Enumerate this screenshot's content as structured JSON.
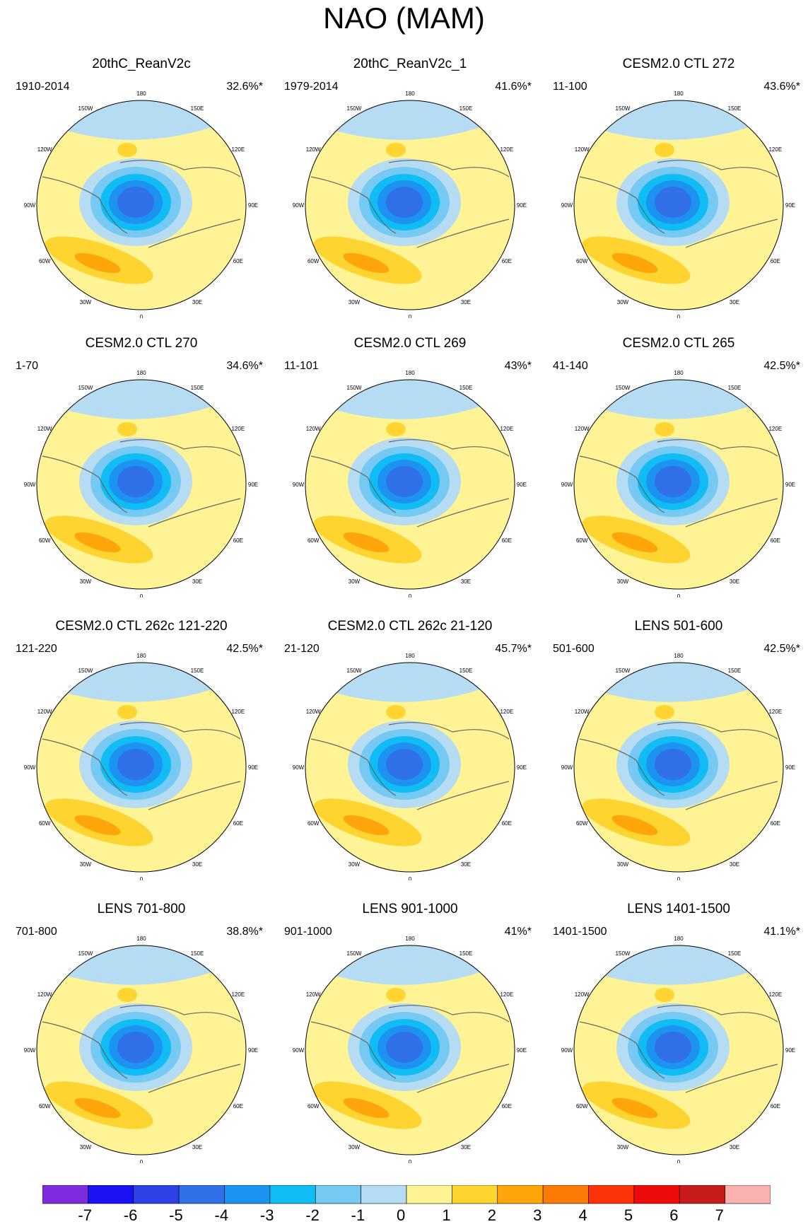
{
  "figure": {
    "title": "NAO (MAM)"
  },
  "chart_data": {
    "type": "heatmap",
    "description_kind": "12 polar-stereographic EOF maps",
    "colorbar": {
      "ticks": [
        "-7",
        "-6",
        "-5",
        "-4",
        "-3",
        "-2",
        "-1",
        "0",
        "1",
        "2",
        "3",
        "4",
        "5",
        "6",
        "7"
      ],
      "colors": [
        "#7f2be0",
        "#1a12f2",
        "#2c42e6",
        "#3070e8",
        "#1c93f0",
        "#10bcf4",
        "#75c9f2",
        "#b5dcf2",
        "#fff495",
        "#fed430",
        "#fea509",
        "#fd7a07",
        "#fe330a",
        "#ec0c0b",
        "#c81c1c",
        "#fcb1b1"
      ]
    },
    "longitude_labels": [
      "180",
      "150W",
      "150E",
      "120W",
      "120E",
      "90W",
      "90E",
      "60W",
      "60E",
      "30W",
      "30E",
      "0"
    ],
    "panels": [
      {
        "title": "20thC_ReanV2c",
        "years": "1910-2014",
        "pct": "32.6%*"
      },
      {
        "title": "20thC_ReanV2c_1",
        "years": "1979-2014",
        "pct": "41.6%*"
      },
      {
        "title": "CESM2.0 CTL 272",
        "years": "11-100",
        "pct": "43.6%*"
      },
      {
        "title": "CESM2.0 CTL 270",
        "years": "1-70",
        "pct": "34.6%*"
      },
      {
        "title": "CESM2.0 CTL 269",
        "years": "11-101",
        "pct": "43%*"
      },
      {
        "title": "CESM2.0 CTL 265",
        "years": "41-140",
        "pct": "42.5%*"
      },
      {
        "title": "CESM2.0 CTL 262c 121-220",
        "years": "121-220",
        "pct": "42.5%*"
      },
      {
        "title": "CESM2.0 CTL 262c 21-120",
        "years": "21-120",
        "pct": "45.7%*"
      },
      {
        "title": "LENS 501-600",
        "years": "501-600",
        "pct": "42.5%*"
      },
      {
        "title": "LENS 701-800",
        "years": "701-800",
        "pct": "38.8%*"
      },
      {
        "title": "LENS 901-1000",
        "years": "901-1000",
        "pct": "41%*"
      },
      {
        "title": "LENS 1401-1500",
        "years": "1401-1500",
        "pct": "41.1%*"
      }
    ]
  }
}
